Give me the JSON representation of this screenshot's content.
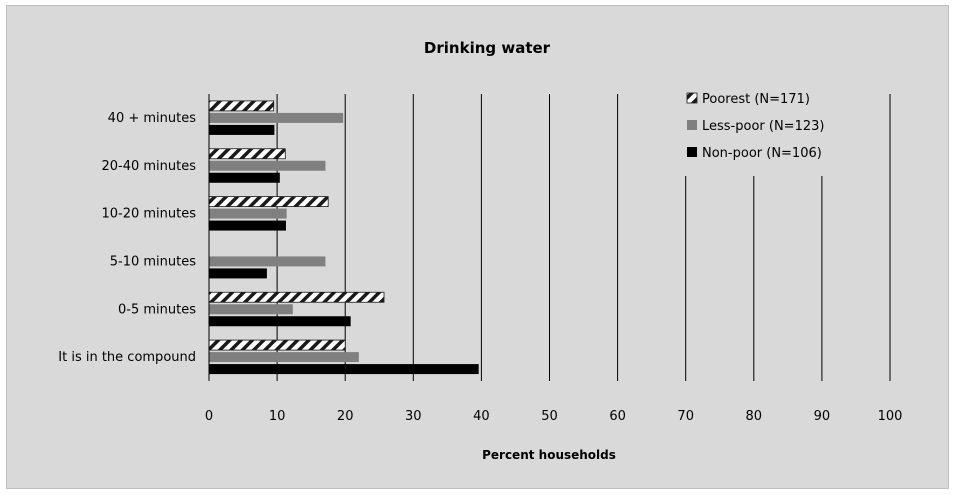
{
  "chart_data": {
    "type": "bar",
    "orientation": "horizontal",
    "title": "Drinking water",
    "xlabel": "Percent households",
    "ylabel": "",
    "xlim": [
      0,
      100
    ],
    "x_ticks": [
      0,
      10,
      20,
      30,
      40,
      50,
      60,
      70,
      80,
      90,
      100
    ],
    "grid": "vertical",
    "legend_position": "top-right",
    "categories": [
      "40 + minutes",
      "20-40 minutes",
      "10-20 minutes",
      "5-10 minutes",
      "0-5 minutes",
      "It is in the compound"
    ],
    "series": [
      {
        "name": "Poorest (N=171)",
        "values": [
          9.5,
          11.2,
          17.5,
          0,
          25.7,
          20.0
        ],
        "color": "#ffffff",
        "pattern": "diagonal-hatch"
      },
      {
        "name": "Less-poor (N=123)",
        "values": [
          19.7,
          17.1,
          11.4,
          17.1,
          12.3,
          22.0
        ],
        "color": "#808080",
        "pattern": "solid"
      },
      {
        "name": "Non-poor (N=106)",
        "values": [
          9.6,
          10.4,
          11.3,
          8.5,
          20.8,
          39.6
        ],
        "color": "#000000",
        "pattern": "solid"
      }
    ]
  }
}
